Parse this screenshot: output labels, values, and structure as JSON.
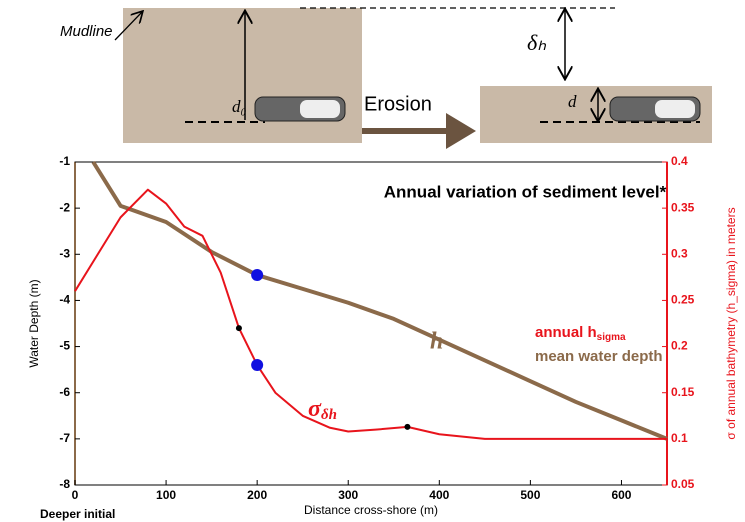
{
  "diagram": {
    "mudline": "Mudline",
    "d0": "d₀",
    "delta_h": "δₕ",
    "d": "d",
    "erosion": "Erosion"
  },
  "chart_data": {
    "type": "line",
    "title": "Annual variation of sediment level*",
    "xlabel": "Distance cross-shore (m)",
    "ylabel": "Water Depth (m)",
    "y2label": "σ of annual bathymetry (h_sigma) in meters",
    "xlim": [
      0,
      650
    ],
    "xticks": [
      0,
      100,
      200,
      300,
      400,
      500,
      600
    ],
    "ylim": [
      -8,
      -1
    ],
    "yticks": [
      -8,
      -7,
      -6,
      -5,
      -4,
      -3,
      -2,
      -1
    ],
    "y2lim": [
      0.05,
      0.4
    ],
    "y2ticks": [
      0.05,
      0.1,
      0.15,
      0.2,
      0.25,
      0.3,
      0.35,
      0.4
    ],
    "series": [
      {
        "name": "mean water depth",
        "color": "#8b6a4a",
        "x": [
          20,
          50,
          100,
          150,
          200,
          250,
          300,
          350,
          400,
          450,
          500,
          550,
          600,
          650
        ],
        "values": [
          -1.0,
          -1.95,
          -2.3,
          -2.95,
          -3.45,
          -3.75,
          -4.05,
          -4.4,
          -4.85,
          -5.3,
          -5.75,
          -6.2,
          -6.6,
          -7.0
        ]
      },
      {
        "name": "annual h",
        "name_sub": "sigma",
        "color": "#e8141c",
        "axis": "y2",
        "x": [
          0,
          25,
          50,
          80,
          100,
          120,
          140,
          160,
          180,
          200,
          220,
          250,
          280,
          300,
          330,
          365,
          400,
          450,
          500,
          550,
          600,
          650
        ],
        "values": [
          0.26,
          0.3,
          0.34,
          0.37,
          0.355,
          0.33,
          0.32,
          0.28,
          0.22,
          0.18,
          0.15,
          0.125,
          0.112,
          0.108,
          0.11,
          0.113,
          0.105,
          0.1,
          0.1,
          0.1,
          0.1,
          0.1
        ]
      }
    ],
    "points": [
      {
        "x": 200,
        "y": -3.45,
        "color": "#1010e0",
        "r": 6
      },
      {
        "x": 200,
        "y": 0.18,
        "axis": "y2",
        "color": "#1010e0",
        "r": 6
      },
      {
        "x": 180,
        "y": 0.22,
        "axis": "y2",
        "color": "#000000",
        "r": 3
      },
      {
        "x": 365,
        "y": 0.113,
        "axis": "y2",
        "color": "#000000",
        "r": 3
      }
    ],
    "h_label": "h",
    "sigma_label": "σ",
    "sigma_sub": "δh",
    "footnote": "Deeper initial"
  }
}
